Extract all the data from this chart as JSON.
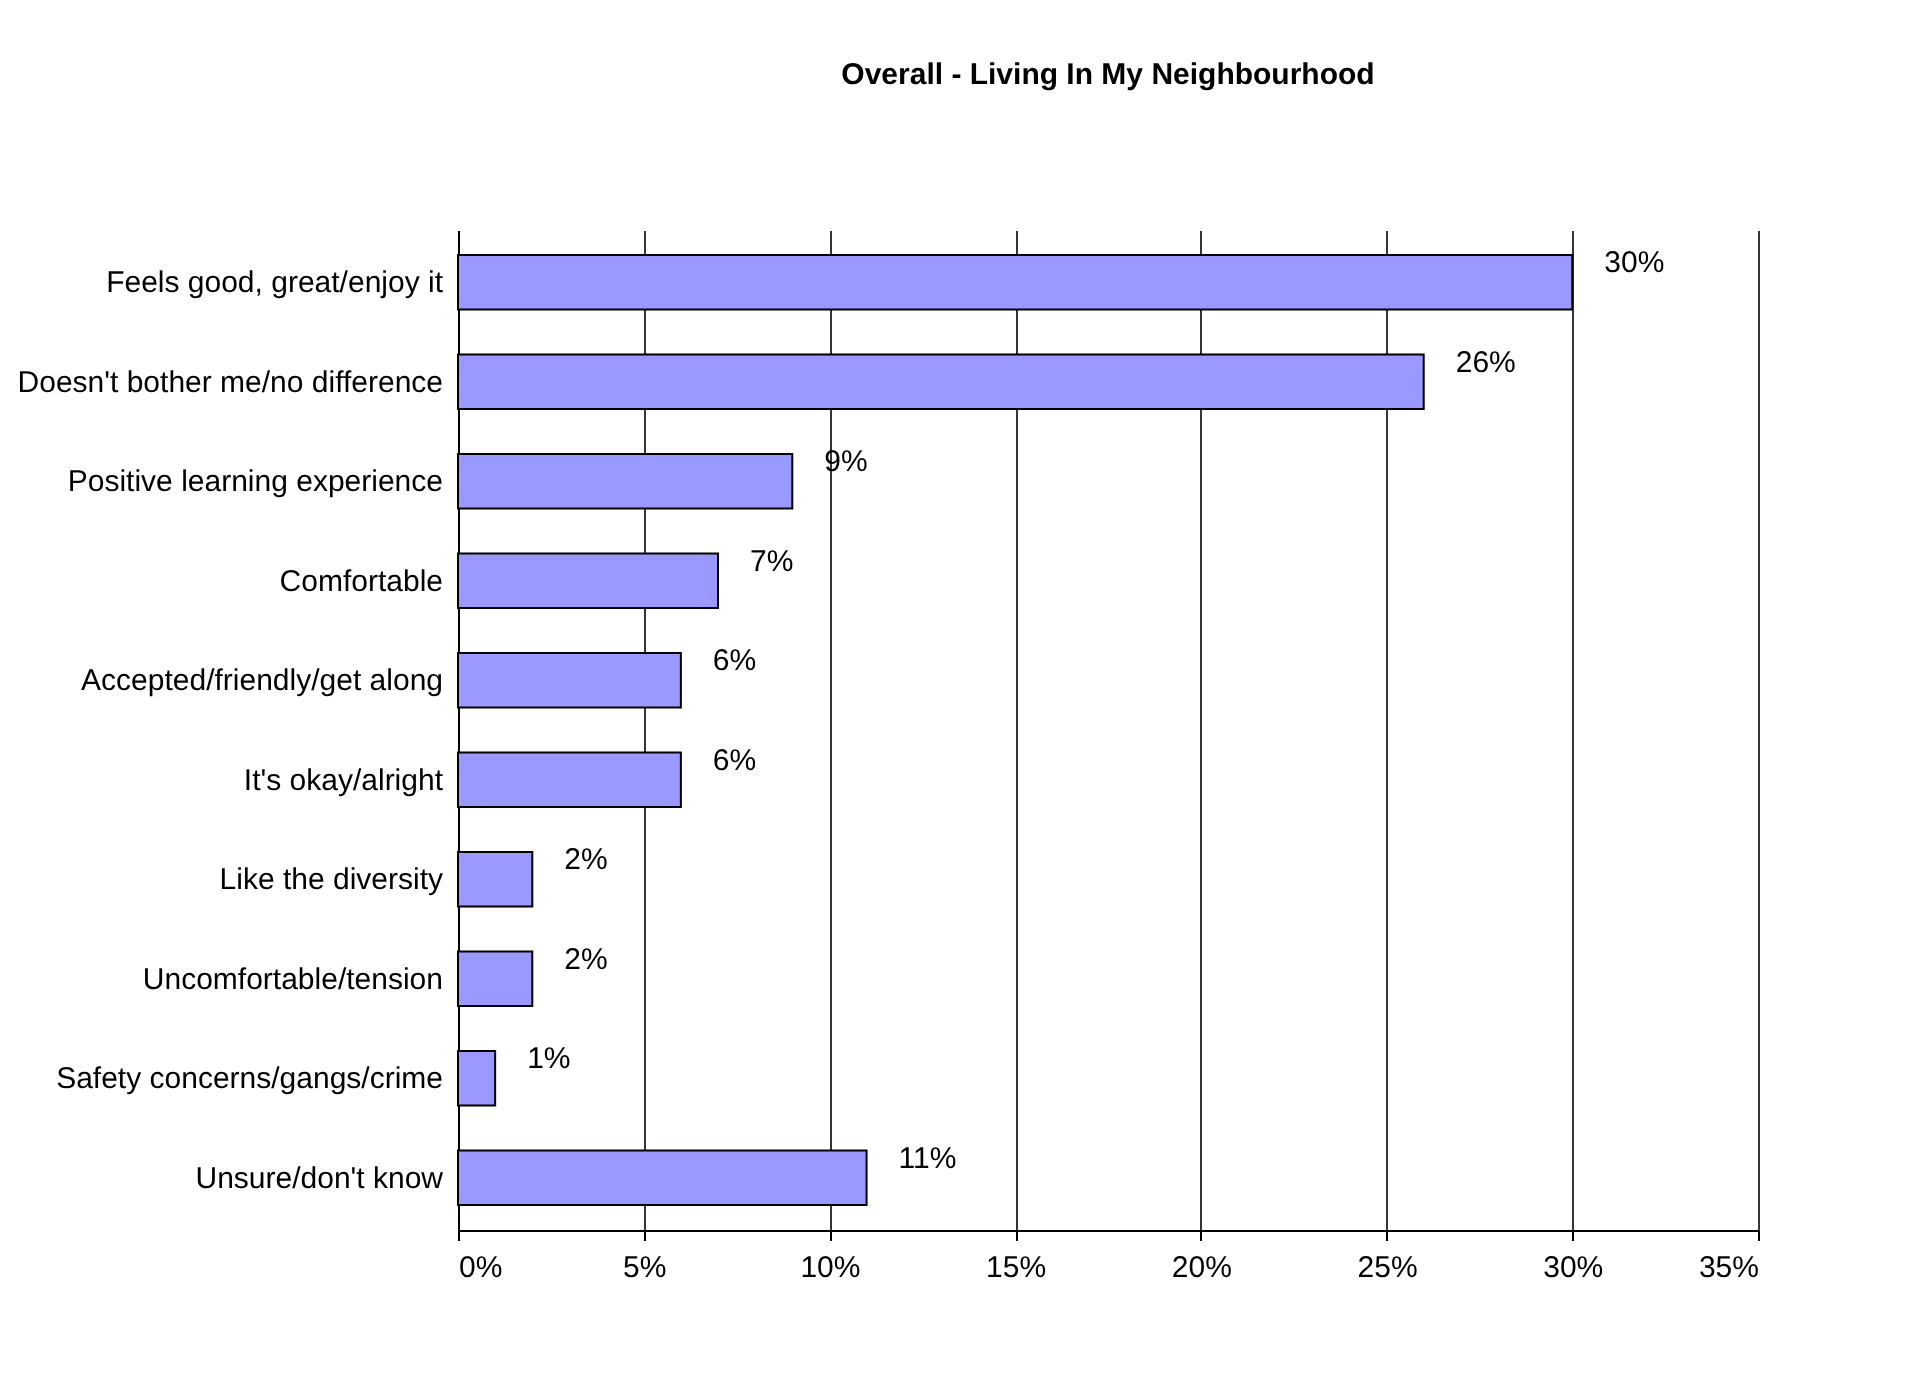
{
  "chart_data": {
    "type": "bar",
    "orientation": "horizontal",
    "title": "Overall - Living In My Neighbourhood",
    "categories": [
      "Feels good, great/enjoy it",
      "Doesn't bother me/no difference",
      "Positive learning experience",
      "Comfortable",
      "Accepted/friendly/get along",
      "It's okay/alright",
      "Like the diversity",
      "Uncomfortable/tension",
      "Safety concerns/gangs/crime",
      "Unsure/don't know"
    ],
    "values": [
      30,
      26,
      9,
      7,
      6,
      6,
      2,
      2,
      1,
      11
    ],
    "value_labels": [
      "30%",
      "26%",
      "9%",
      "7%",
      "6%",
      "6%",
      "2%",
      "2%",
      "1%",
      "11%"
    ],
    "color": "#9999ff",
    "xlim": [
      0,
      35
    ],
    "xticks": [
      {
        "value": 0,
        "label": "0%"
      },
      {
        "value": 5,
        "label": "5%"
      },
      {
        "value": 10,
        "label": "10%"
      },
      {
        "value": 15,
        "label": "15%"
      },
      {
        "value": 20,
        "label": "20%"
      },
      {
        "value": 25,
        "label": "25%"
      },
      {
        "value": 30,
        "label": "30%"
      },
      {
        "value": 35,
        "label": "35%"
      }
    ],
    "grid": "x"
  }
}
